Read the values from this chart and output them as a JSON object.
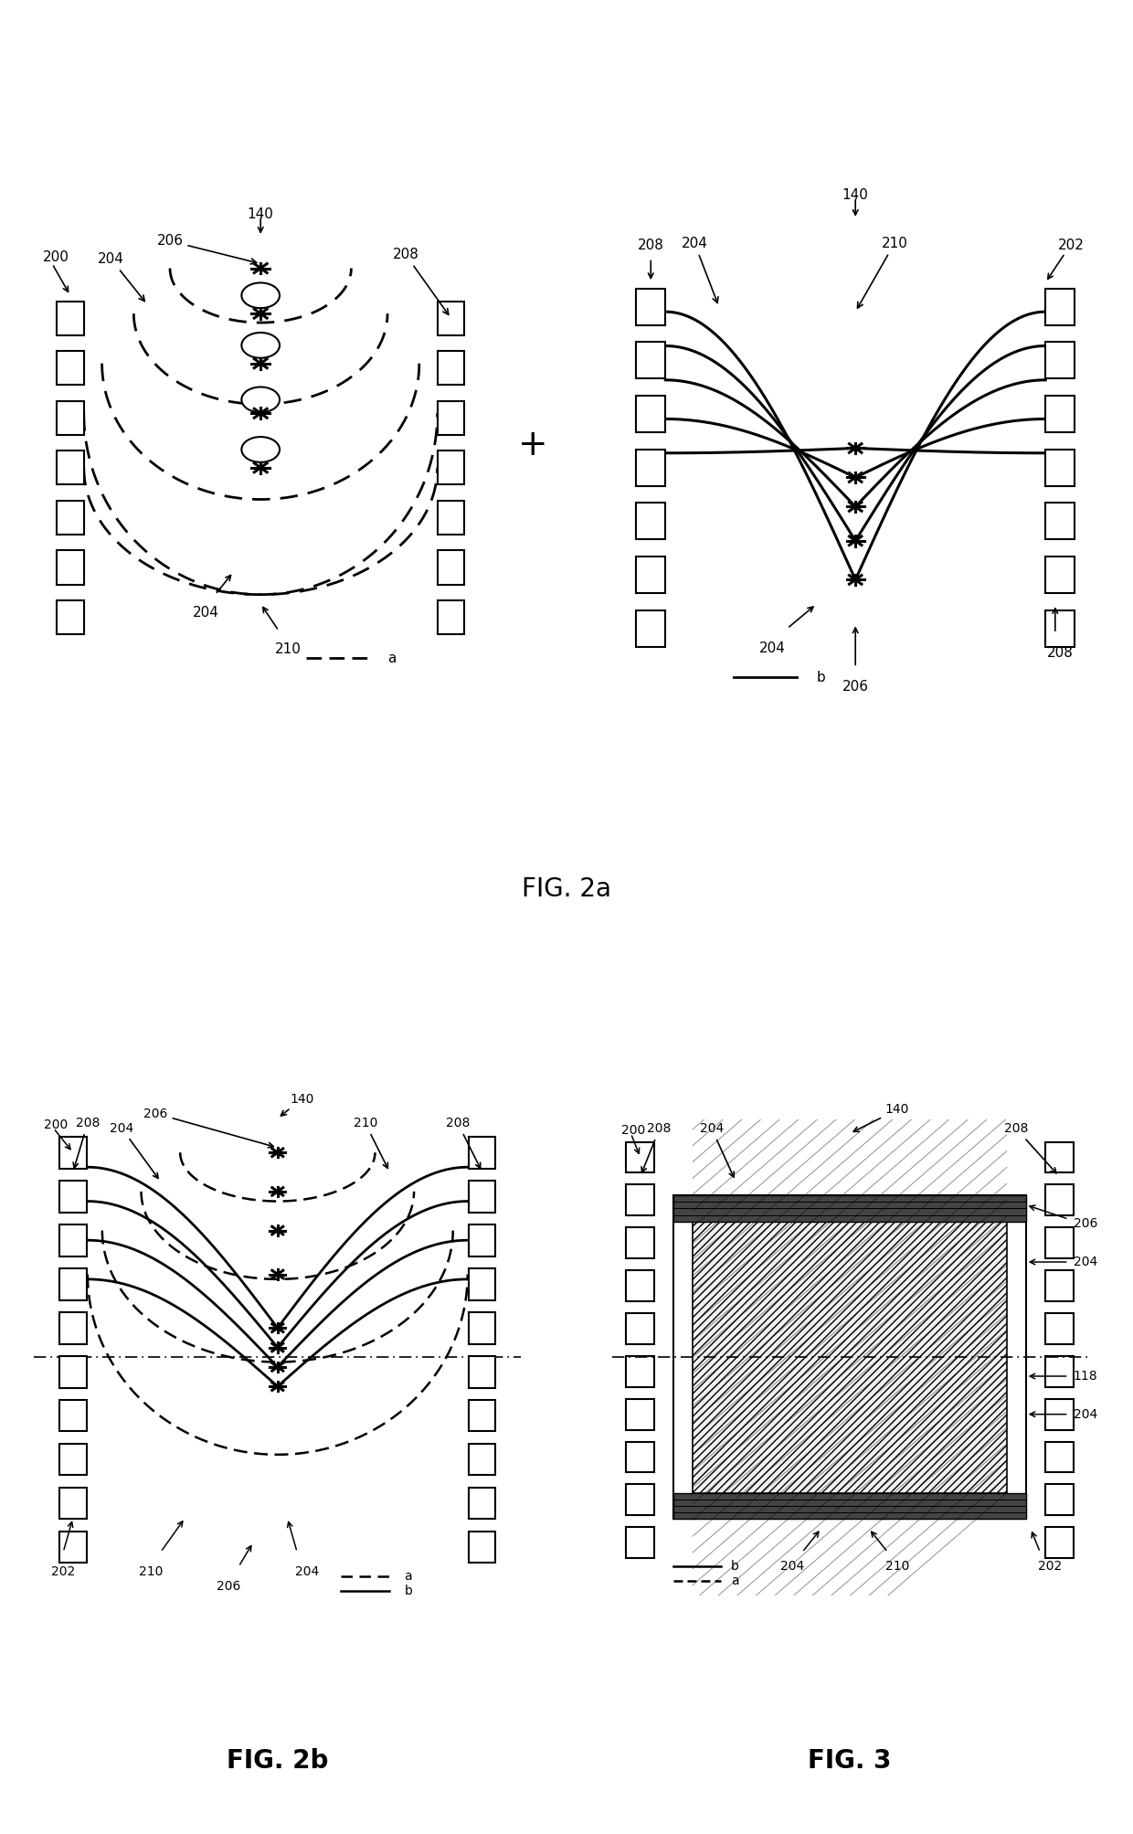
{
  "bg_color": "#ffffff",
  "fig_width": 12.4,
  "fig_height": 20.07,
  "fig2a_title": "FIG. 2a",
  "fig2b_title": "FIG. 2b",
  "fig3_title": "FIG. 3",
  "label_fontsize": 11,
  "title_fontsize": 20
}
